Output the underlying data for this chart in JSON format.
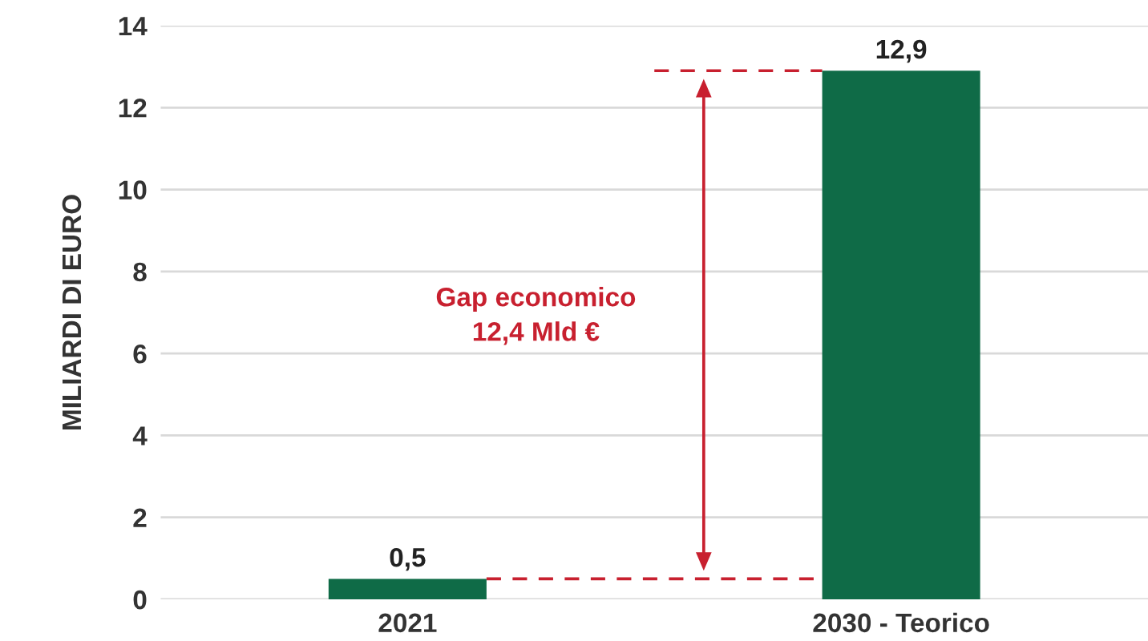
{
  "chart_data": {
    "type": "bar",
    "ylabel": "MILIARDI DI EURO",
    "categories": [
      "2021",
      "2030 - Teorico"
    ],
    "values": [
      0.5,
      12.9
    ],
    "color": "#0f6b47",
    "value_labels": [
      "0,5",
      "12,9"
    ],
    "ylim": [
      0,
      14
    ],
    "yticks": [
      0,
      2,
      4,
      6,
      8,
      10,
      12,
      14
    ],
    "grid": "y",
    "ref_lines": [
      {
        "axis": "y",
        "value": 12.9,
        "color": "#c8202f",
        "line_style": "dashed"
      },
      {
        "axis": "y",
        "value": 0.5,
        "color": "#c8202f",
        "line_style": "dashed"
      }
    ],
    "annotations": [
      "Gap economico\n12,4 Mld €"
    ]
  }
}
